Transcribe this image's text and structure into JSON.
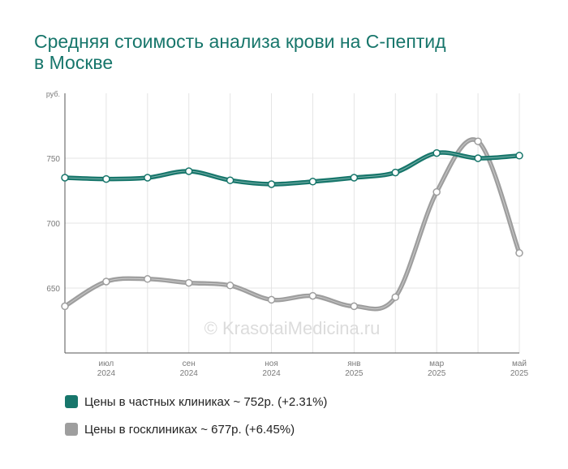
{
  "chart_data": {
    "type": "line",
    "title_lines": [
      "Средняя стоимость анализа крови на С-пептид",
      "в Москве"
    ],
    "ylabel": "руб.",
    "ylim": [
      600,
      800
    ],
    "yticks": [
      650,
      700,
      750
    ],
    "watermark": "© KrasotaiMedicina.ru",
    "x_labels": [
      {
        "m": 1,
        "top": "июл",
        "bottom": "2024"
      },
      {
        "m": 3,
        "top": "сен",
        "bottom": "2024"
      },
      {
        "m": 5,
        "top": "ноя",
        "bottom": "2024"
      },
      {
        "m": 7,
        "top": "янв",
        "bottom": "2025"
      },
      {
        "m": 9,
        "top": "мар",
        "bottom": "2025"
      },
      {
        "m": 11,
        "top": "май",
        "bottom": "2025"
      }
    ],
    "series": [
      {
        "name": "Цены в частных клиниках ~ 752р. (+2.31%)",
        "color": "#17766b",
        "values": [
          735,
          734,
          735,
          740,
          733,
          730,
          732,
          735,
          739,
          754,
          750,
          752
        ]
      },
      {
        "name": "Цены в госклиниках ~ 677р. (+6.45%)",
        "color": "#9e9e9e",
        "values": [
          636,
          655,
          657,
          654,
          652,
          641,
          644,
          636,
          643,
          724,
          763,
          677
        ]
      }
    ]
  }
}
